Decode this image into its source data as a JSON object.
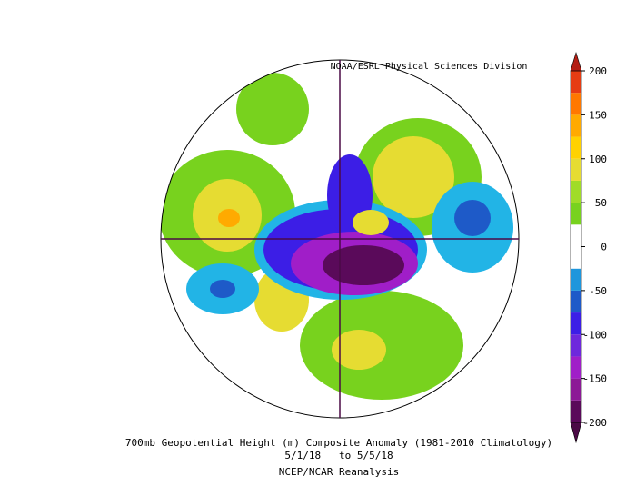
{
  "header": {
    "credit": "NOAA/ESRL Physical Sciences Division"
  },
  "footer": {
    "title": "700mb Geopotential Height (m) Composite Anomaly (1981-2010 Climatology)",
    "dates": "5/1/18   to 5/5/18",
    "source": "NCEP/NCAR Reanalysis"
  },
  "colorbar": {
    "ticks": [
      200,
      150,
      100,
      50,
      0,
      -50,
      -100,
      -150,
      -200
    ],
    "bounds": [
      -200,
      -175,
      -150,
      -125,
      -100,
      -75,
      -50,
      -25,
      0,
      25,
      50,
      75,
      100,
      125,
      150,
      175,
      200
    ],
    "colors": [
      "#5a0a5a",
      "#8c1a96",
      "#a01ec8",
      "#6e28dc",
      "#3c1ee6",
      "#1e5ac8",
      "#1e96dc",
      "#ffffff",
      "#ffffff",
      "#78d21e",
      "#a0dc28",
      "#e6dc32",
      "#ffd200",
      "#ffaa00",
      "#ff7800",
      "#e63c14"
    ],
    "low_color": "#4b0a46",
    "high_color": "#b41e14"
  }
}
